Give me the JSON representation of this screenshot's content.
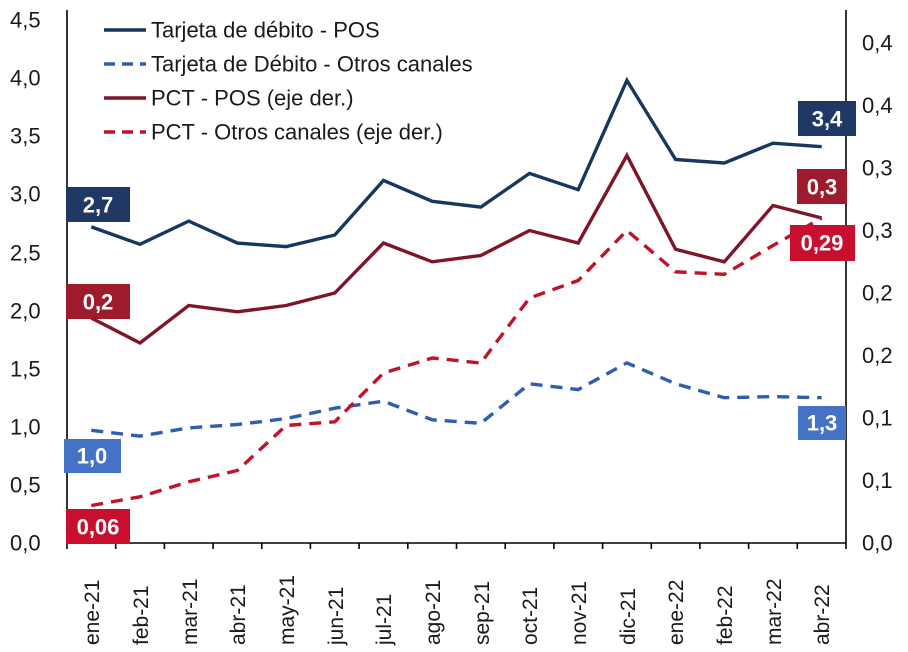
{
  "chart_data": {
    "type": "line",
    "categories": [
      "ene-21",
      "feb-21",
      "mar-21",
      "abr-21",
      "may-21",
      "jun-21",
      "jul-21",
      "ago-21",
      "sep-21",
      "oct-21",
      "nov-21",
      "dic-21",
      "ene-22",
      "feb-22",
      "mar-22",
      "abr-22"
    ],
    "series": [
      {
        "name": "Tarjeta de débito - POS",
        "axis": "left",
        "style": "solid",
        "color": "#17375E",
        "values": [
          2.72,
          2.57,
          2.77,
          2.58,
          2.55,
          2.65,
          3.12,
          2.94,
          2.89,
          3.18,
          3.04,
          3.98,
          3.3,
          3.27,
          3.44,
          3.41
        ]
      },
      {
        "name": "Tarjeta de Débito - Otros canales",
        "axis": "left",
        "style": "dashed",
        "color": "#2F5DB0",
        "values": [
          0.97,
          0.92,
          0.99,
          1.02,
          1.07,
          1.16,
          1.22,
          1.06,
          1.03,
          1.37,
          1.32,
          1.55,
          1.37,
          1.25,
          1.26,
          1.25
        ]
      },
      {
        "name": "PCT - POS (eje der.)",
        "axis": "right",
        "style": "solid",
        "color": "#7E1528",
        "values": [
          0.21,
          0.19,
          0.22,
          0.215,
          0.22,
          0.23,
          0.27,
          0.255,
          0.26,
          0.28,
          0.27,
          0.34,
          0.265,
          0.255,
          0.3,
          0.29
        ]
      },
      {
        "name": "PCT - Otros canales (eje der.)",
        "axis": "right",
        "style": "dashed",
        "color": "#C0122A",
        "values": [
          0.06,
          0.067,
          0.079,
          0.088,
          0.124,
          0.127,
          0.166,
          0.178,
          0.174,
          0.226,
          0.24,
          0.28,
          0.247,
          0.245,
          0.268,
          0.29
        ]
      }
    ],
    "left_axis": {
      "min": 0.0,
      "max": 4.5,
      "step": 0.5,
      "tick_labels": [
        "4,5",
        "4,0",
        "3,5",
        "3,0",
        "2,5",
        "2,0",
        "1,5",
        "1,0",
        "0,5",
        "0,0"
      ]
    },
    "right_axis": {
      "display_min": "0,0",
      "display_max": "0,4",
      "step": 0.05,
      "tick_labels": [
        "0,4",
        "0,4",
        "0,3",
        "0,3",
        "0,2",
        "0,2",
        "0,1",
        "0,1",
        "0,0"
      ]
    },
    "legend_position": "top-left",
    "grid": "off",
    "data_labels": [
      {
        "text": "2,7",
        "series": "Tarjeta de débito - POS",
        "point": "ene-21",
        "bg": "#1F3864"
      },
      {
        "text": "3,4",
        "series": "Tarjeta de débito - POS",
        "point": "abr-22",
        "bg": "#1F3864"
      },
      {
        "text": "1,0",
        "series": "Tarjeta de Débito - Otros canales",
        "point": "ene-21",
        "bg": "#4472C4"
      },
      {
        "text": "1,3",
        "series": "Tarjeta de Débito - Otros canales",
        "point": "abr-22",
        "bg": "#4472C4"
      },
      {
        "text": "0,2",
        "series": "PCT - POS (eje der.)",
        "point": "ene-21",
        "bg": "#9E1B2B"
      },
      {
        "text": "0,3",
        "series": "PCT - POS (eje der.)",
        "point": "abr-22",
        "bg": "#9E1B2B"
      },
      {
        "text": "0,06",
        "series": "PCT - Otros canales (eje der.)",
        "point": "ene-21",
        "bg": "#C8102E"
      },
      {
        "text": "0,29",
        "series": "PCT - Otros canales (eje der.)",
        "point": "abr-22",
        "bg": "#C8102E"
      }
    ],
    "colors": {
      "axis_line": "#000000",
      "navy": "#17375E",
      "navy_box": "#1F3864",
      "blue": "#2F5DB0",
      "blue_box": "#4472C4",
      "maroon": "#7E1528",
      "maroon_box": "#9E1B2B",
      "red": "#C0122A",
      "red_box": "#C8102E"
    }
  }
}
